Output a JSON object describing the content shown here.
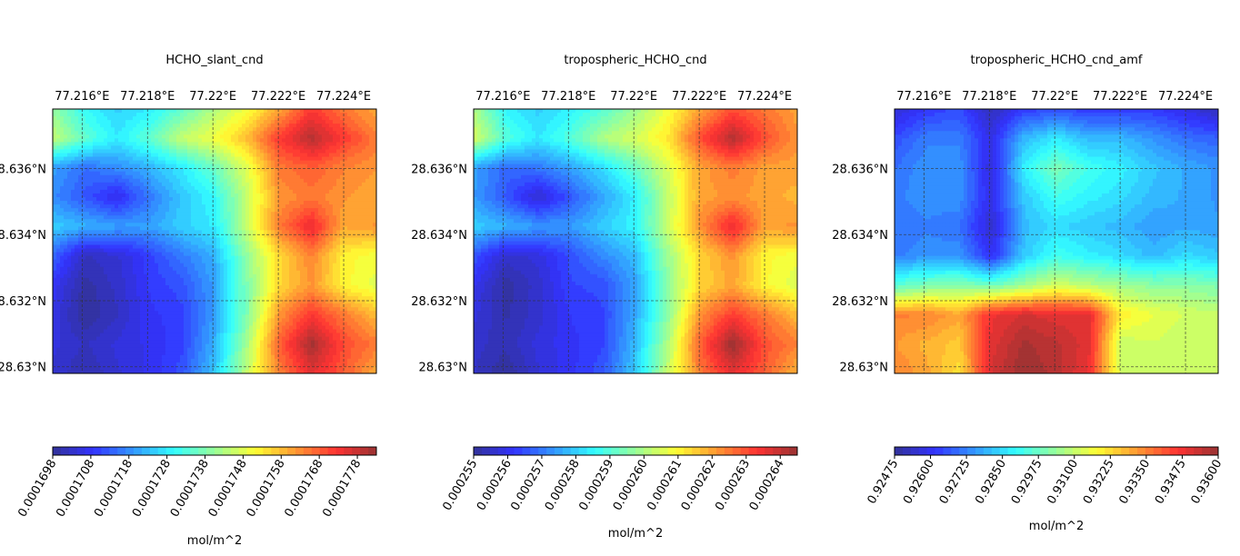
{
  "chart_data": [
    {
      "type": "heatmap",
      "title": "HCHO_slant_cnd",
      "x_ticks": [
        "77.216°E",
        "77.218°E",
        "77.22°E",
        "77.222°E",
        "77.224°E"
      ],
      "x_tick_values": [
        77.216,
        77.218,
        77.22,
        77.222,
        77.224
      ],
      "y_ticks": [
        "28.636°N",
        "28.634°N",
        "28.632°N",
        "28.63°N"
      ],
      "y_tick_values": [
        28.636,
        28.634,
        28.632,
        28.63
      ],
      "xlim": [
        77.2151,
        77.225
      ],
      "ylim": [
        28.6298,
        28.6378
      ],
      "grid": true,
      "colormap": "jet",
      "colorbar": {
        "label": "mol/m^2",
        "ticks": [
          "0.0001698",
          "0.0001708",
          "0.0001718",
          "0.0001728",
          "0.0001738",
          "0.0001748",
          "0.0001758",
          "0.0001768",
          "0.0001778"
        ],
        "range": [
          0.0001698,
          0.0001783
        ]
      },
      "x": [
        77.2151,
        77.216,
        77.217,
        77.218,
        77.219,
        77.22,
        77.221,
        77.222,
        77.223,
        77.224,
        77.225
      ],
      "y": [
        28.6378,
        28.637,
        28.6362,
        28.6352,
        28.6343,
        28.6334,
        28.6325,
        28.6316,
        28.6307,
        28.6298
      ],
      "z": [
        [
          0.000174,
          0.000173,
          0.0001725,
          0.0001728,
          0.0001735,
          0.0001743,
          0.000175,
          0.000176,
          0.0001772,
          0.0001765,
          0.000176
        ],
        [
          0.0001745,
          0.0001735,
          0.0001728,
          0.0001735,
          0.0001745,
          0.000175,
          0.0001758,
          0.0001772,
          0.000178,
          0.0001772,
          0.0001765
        ],
        [
          0.000172,
          0.0001715,
          0.0001718,
          0.0001722,
          0.0001728,
          0.0001736,
          0.0001748,
          0.0001765,
          0.0001768,
          0.0001764,
          0.0001762
        ],
        [
          0.0001718,
          0.0001712,
          0.0001706,
          0.0001716,
          0.0001724,
          0.000173,
          0.0001745,
          0.0001762,
          0.0001765,
          0.0001762,
          0.000176
        ],
        [
          0.0001725,
          0.0001722,
          0.000172,
          0.000172,
          0.0001725,
          0.0001728,
          0.0001745,
          0.0001765,
          0.0001775,
          0.000176,
          0.0001762
        ],
        [
          0.0001714,
          0.0001702,
          0.0001704,
          0.000171,
          0.0001716,
          0.0001722,
          0.000174,
          0.0001755,
          0.0001764,
          0.0001752,
          0.000175
        ],
        [
          0.0001708,
          0.0001699,
          0.0001703,
          0.0001709,
          0.0001712,
          0.000172,
          0.0001738,
          0.0001755,
          0.0001762,
          0.0001752,
          0.0001748
        ],
        [
          0.0001706,
          0.0001698,
          0.0001702,
          0.0001708,
          0.000171,
          0.000172,
          0.0001738,
          0.0001762,
          0.0001772,
          0.0001765,
          0.0001758
        ],
        [
          0.0001705,
          0.0001702,
          0.0001705,
          0.0001707,
          0.000171,
          0.0001722,
          0.0001742,
          0.0001768,
          0.0001782,
          0.000177,
          0.0001765
        ],
        [
          0.0001704,
          0.00017,
          0.0001704,
          0.0001707,
          0.0001712,
          0.0001724,
          0.0001745,
          0.0001764,
          0.0001775,
          0.0001768,
          0.000176
        ]
      ]
    },
    {
      "type": "heatmap",
      "title": "tropospheric_HCHO_cnd",
      "x_ticks": [
        "77.216°E",
        "77.218°E",
        "77.22°E",
        "77.222°E",
        "77.224°E"
      ],
      "x_tick_values": [
        77.216,
        77.218,
        77.22,
        77.222,
        77.224
      ],
      "y_ticks": [
        "28.636°N",
        "28.634°N",
        "28.632°N",
        "28.63°N"
      ],
      "y_tick_values": [
        28.636,
        28.634,
        28.632,
        28.63
      ],
      "xlim": [
        77.2151,
        77.225
      ],
      "ylim": [
        28.6298,
        28.6378
      ],
      "grid": true,
      "colormap": "jet",
      "colorbar": {
        "label": "mol/m^2",
        "ticks": [
          "0.000255",
          "0.000256",
          "0.000257",
          "0.000258",
          "0.000259",
          "0.000260",
          "0.000261",
          "0.000262",
          "0.000263",
          "0.000264"
        ],
        "range": [
          0.000255,
          0.0002645
        ]
      },
      "x": [
        77.2151,
        77.216,
        77.217,
        77.218,
        77.219,
        77.22,
        77.221,
        77.222,
        77.223,
        77.224,
        77.225
      ],
      "y": [
        28.6378,
        28.637,
        28.6362,
        28.6352,
        28.6343,
        28.6334,
        28.6325,
        28.6316,
        28.6307,
        28.6298
      ],
      "z": [
        [
          0.00026,
          0.0002585,
          0.000258,
          0.0002584,
          0.000259,
          0.0002598,
          0.0002608,
          0.000262,
          0.000263,
          0.0002625,
          0.000262
        ],
        [
          0.0002605,
          0.000259,
          0.0002583,
          0.000259,
          0.00026,
          0.0002605,
          0.0002612,
          0.000263,
          0.0002642,
          0.000263,
          0.0002622
        ],
        [
          0.0002575,
          0.0002568,
          0.000257,
          0.0002575,
          0.0002582,
          0.0002592,
          0.0002605,
          0.000262,
          0.0002625,
          0.000262,
          0.000262
        ],
        [
          0.0002574,
          0.0002566,
          0.0002556,
          0.0002566,
          0.0002575,
          0.0002584,
          0.0002602,
          0.000262,
          0.0002622,
          0.000262,
          0.0002618
        ],
        [
          0.000258,
          0.0002577,
          0.0002574,
          0.0002574,
          0.000258,
          0.0002585,
          0.0002603,
          0.0002622,
          0.0002636,
          0.000262,
          0.0002622
        ],
        [
          0.0002566,
          0.0002556,
          0.0002558,
          0.0002565,
          0.0002572,
          0.0002578,
          0.0002598,
          0.0002614,
          0.0002622,
          0.000261,
          0.0002608
        ],
        [
          0.000256,
          0.0002551,
          0.0002556,
          0.0002564,
          0.0002565,
          0.0002575,
          0.0002596,
          0.0002614,
          0.000262,
          0.000261,
          0.0002605
        ],
        [
          0.0002558,
          0.0002552,
          0.0002556,
          0.0002562,
          0.0002564,
          0.0002576,
          0.0002596,
          0.0002622,
          0.0002632,
          0.0002625,
          0.0002617
        ],
        [
          0.0002556,
          0.0002553,
          0.0002558,
          0.0002561,
          0.0002564,
          0.0002578,
          0.00026,
          0.0002628,
          0.0002645,
          0.000263,
          0.0002624
        ],
        [
          0.0002555,
          0.000255,
          0.0002557,
          0.0002561,
          0.0002566,
          0.000258,
          0.0002603,
          0.0002625,
          0.0002636,
          0.0002628,
          0.0002618
        ]
      ]
    },
    {
      "type": "heatmap",
      "title": "tropospheric_HCHO_cnd_amf",
      "x_ticks": [
        "77.216°E",
        "77.218°E",
        "77.22°E",
        "77.222°E",
        "77.224°E"
      ],
      "x_tick_values": [
        77.216,
        77.218,
        77.22,
        77.222,
        77.224
      ],
      "y_ticks": [
        "28.636°N",
        "28.634°N",
        "28.632°N",
        "28.63°N"
      ],
      "y_tick_values": [
        28.636,
        28.634,
        28.632,
        28.63
      ],
      "xlim": [
        77.2151,
        77.225
      ],
      "ylim": [
        28.6298,
        28.6378
      ],
      "grid": true,
      "colormap": "jet",
      "colorbar": {
        "label": "mol/m^2",
        "ticks": [
          "0.92475",
          "0.92600",
          "0.92725",
          "0.92850",
          "0.92975",
          "0.93100",
          "0.93225",
          "0.93350",
          "0.93475",
          "0.93600"
        ],
        "range": [
          0.92475,
          0.936
        ]
      },
      "x": [
        77.2151,
        77.216,
        77.217,
        77.218,
        77.219,
        77.22,
        77.221,
        77.222,
        77.223,
        77.224,
        77.225
      ],
      "y": [
        28.6378,
        28.637,
        28.6362,
        28.6352,
        28.6343,
        28.6334,
        28.6325,
        28.6316,
        28.6307,
        28.6298
      ],
      "z": [
        [
          0.9255,
          0.9262,
          0.9265,
          0.9252,
          0.9262,
          0.9265,
          0.9262,
          0.9262,
          0.9262,
          0.9258,
          0.9252
        ],
        [
          0.9265,
          0.9272,
          0.9272,
          0.9258,
          0.928,
          0.9287,
          0.928,
          0.928,
          0.9275,
          0.927,
          0.9268
        ],
        [
          0.927,
          0.9275,
          0.9275,
          0.9256,
          0.9288,
          0.93,
          0.9292,
          0.9288,
          0.9282,
          0.9278,
          0.9275
        ],
        [
          0.9272,
          0.9275,
          0.9275,
          0.9258,
          0.9282,
          0.9292,
          0.9288,
          0.9285,
          0.928,
          0.9278,
          0.9275
        ],
        [
          0.927,
          0.9272,
          0.927,
          0.9255,
          0.928,
          0.9285,
          0.9282,
          0.928,
          0.9276,
          0.9278,
          0.9276
        ],
        [
          0.9272,
          0.9275,
          0.9275,
          0.926,
          0.9282,
          0.9292,
          0.9288,
          0.9285,
          0.928,
          0.9285,
          0.9282
        ],
        [
          0.9295,
          0.93,
          0.9302,
          0.9298,
          0.9305,
          0.9312,
          0.9308,
          0.9305,
          0.9302,
          0.9302,
          0.93
        ],
        [
          0.9335,
          0.9335,
          0.933,
          0.9348,
          0.9352,
          0.935,
          0.935,
          0.932,
          0.9315,
          0.9312,
          0.931
        ],
        [
          0.9332,
          0.9328,
          0.9325,
          0.935,
          0.9358,
          0.9355,
          0.935,
          0.931,
          0.9312,
          0.931,
          0.931
        ],
        [
          0.9335,
          0.933,
          0.9322,
          0.9352,
          0.936,
          0.9356,
          0.9348,
          0.9312,
          0.931,
          0.931,
          0.9312
        ]
      ]
    }
  ]
}
